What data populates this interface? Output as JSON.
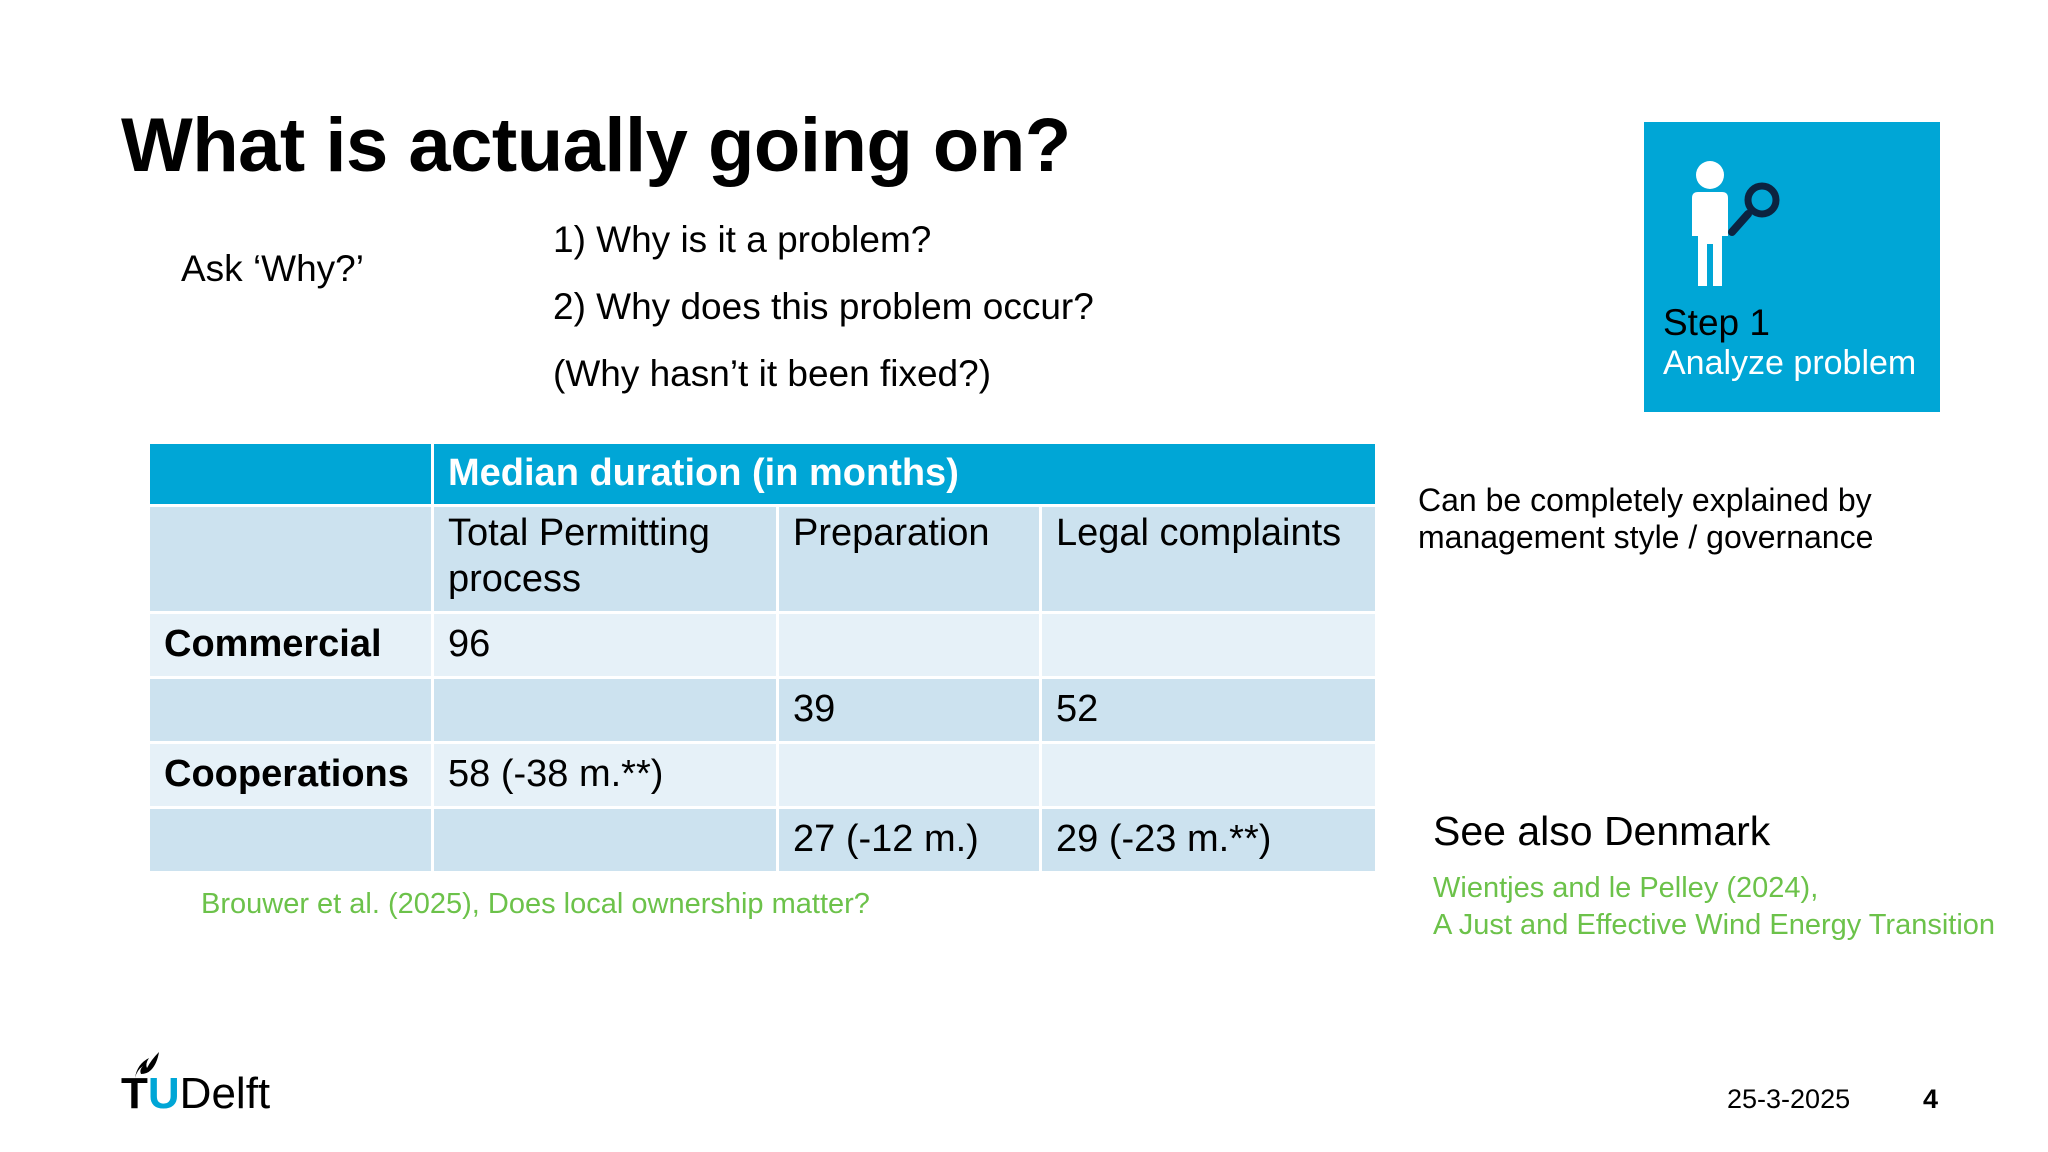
{
  "slide": {
    "title": "What is actually going on?",
    "ask_label": "Ask ‘Why?’",
    "questions": [
      "1) Why is it a problem?",
      "2) Why does this problem occur?",
      "(Why hasn’t it been fixed?)"
    ]
  },
  "step_box": {
    "title": "Step 1",
    "subtitle": "Analyze problem",
    "icon": "person-magnifier-icon",
    "color": "#00A6D6"
  },
  "table": {
    "header": "Median duration (in months)",
    "columns": [
      "Total Permitting process",
      "Preparation",
      "Legal complaints"
    ],
    "rows": [
      {
        "label": "Commercial",
        "cells": [
          "96",
          "",
          ""
        ]
      },
      {
        "label": "",
        "cells": [
          "",
          "39",
          "52"
        ]
      },
      {
        "label": "Cooperations",
        "cells": [
          "58 (-38 m.**)",
          "",
          ""
        ]
      },
      {
        "label": "",
        "cells": [
          "",
          "27 (-12 m.)",
          "29 (-23 m.**)"
        ]
      }
    ],
    "colors": {
      "header": "#00A6D6",
      "dark_row": "#CCE2EF",
      "light_row": "#E6F1F8"
    }
  },
  "citation_left": "Brouwer et al. (2025),  Does local ownership matter?",
  "note": "Can be completely explained by management style / governance",
  "see_also": "See also Denmark",
  "citation_right": [
    "Wientjes and le Pelley (2024),",
    "A Just and Effective Wind Energy Transition"
  ],
  "citation_color": "#6CC24A",
  "footer": {
    "logo": {
      "t": "T",
      "u": "U",
      "rest": "Delft",
      "icon": "tu-delft-flame-icon"
    },
    "date": "25-3-2025",
    "page": "4"
  }
}
